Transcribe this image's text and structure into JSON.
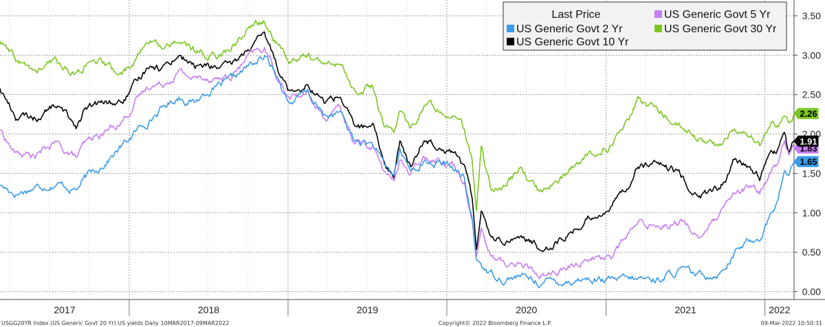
{
  "chart_data": {
    "type": "line",
    "ylim": [
      -0.1,
      3.7
    ],
    "y_ticks": [
      "0.00",
      "0.50",
      "1.00",
      "1.50",
      "2.00",
      "2.50",
      "3.00",
      "3.50"
    ],
    "y_tick_values": [
      0,
      0.5,
      1.0,
      1.5,
      2.0,
      2.5,
      3.0,
      3.5
    ],
    "x_range": [
      "2017-03-10",
      "2022-03-09"
    ],
    "x_ticks": [
      "2017",
      "2018",
      "2019",
      "2020",
      "2021",
      "2022"
    ],
    "grid": true,
    "legend": {
      "title": "Last Price",
      "placement": "top-right",
      "entries": [
        {
          "name": "US Generic Govt 2 Yr",
          "color": "#3a9be8"
        },
        {
          "name": "US Generic Govt 5 Yr",
          "color": "#c77df3"
        },
        {
          "name": "US Generic Govt 10 Yr",
          "color": "#000000"
        },
        {
          "name": "US Generic Govt 30 Yr",
          "color": "#7cc61f"
        }
      ]
    },
    "last_price_tags": [
      {
        "value": "2.26",
        "y": 2.26,
        "color": "#7cc61f",
        "text_color": "#000000"
      },
      {
        "value": "1.91",
        "y": 1.91,
        "color": "#000000",
        "text_color": "#ffffff"
      },
      {
        "value": "1.83",
        "y": 1.83,
        "color": "#c77df3",
        "text_color": "#000000"
      },
      {
        "value": "1.65",
        "y": 1.65,
        "color": "#3a9be8",
        "text_color": "#000000"
      }
    ],
    "series": [
      {
        "name": "US Generic Govt 2 Yr",
        "color": "#3a9be8",
        "points": [
          [
            "2017-03-10",
            1.35
          ],
          [
            "2017-04-15",
            1.25
          ],
          [
            "2017-06-01",
            1.33
          ],
          [
            "2017-07-15",
            1.38
          ],
          [
            "2017-09-01",
            1.3
          ],
          [
            "2017-09-20",
            1.42
          ],
          [
            "2017-11-01",
            1.62
          ],
          [
            "2017-12-15",
            1.84
          ],
          [
            "2018-01-15",
            2.02
          ],
          [
            "2018-03-01",
            2.25
          ],
          [
            "2018-04-25",
            2.48
          ],
          [
            "2018-05-30",
            2.4
          ],
          [
            "2018-07-01",
            2.55
          ],
          [
            "2018-08-20",
            2.65
          ],
          [
            "2018-10-01",
            2.85
          ],
          [
            "2018-11-08",
            2.97
          ],
          [
            "2018-12-10",
            2.72
          ],
          [
            "2019-01-03",
            2.4
          ],
          [
            "2019-02-15",
            2.52
          ],
          [
            "2019-03-25",
            2.22
          ],
          [
            "2019-05-01",
            2.27
          ],
          [
            "2019-06-01",
            1.92
          ],
          [
            "2019-07-15",
            1.86
          ],
          [
            "2019-08-10",
            1.58
          ],
          [
            "2019-09-01",
            1.48
          ],
          [
            "2019-09-15",
            1.78
          ],
          [
            "2019-10-10",
            1.53
          ],
          [
            "2019-11-10",
            1.64
          ],
          [
            "2019-12-15",
            1.62
          ],
          [
            "2020-01-15",
            1.58
          ],
          [
            "2020-02-10",
            1.42
          ],
          [
            "2020-02-28",
            0.9
          ],
          [
            "2020-03-09",
            0.4
          ],
          [
            "2020-03-20",
            0.35
          ],
          [
            "2020-04-10",
            0.22
          ],
          [
            "2020-05-15",
            0.17
          ],
          [
            "2020-06-15",
            0.2
          ],
          [
            "2020-08-01",
            0.12
          ],
          [
            "2020-10-01",
            0.14
          ],
          [
            "2020-11-15",
            0.17
          ],
          [
            "2021-01-15",
            0.13
          ],
          [
            "2021-03-15",
            0.15
          ],
          [
            "2021-05-01",
            0.16
          ],
          [
            "2021-06-20",
            0.27
          ],
          [
            "2021-08-01",
            0.19
          ],
          [
            "2021-09-20",
            0.25
          ],
          [
            "2021-10-20",
            0.48
          ],
          [
            "2021-11-20",
            0.62
          ],
          [
            "2021-12-20",
            0.7
          ],
          [
            "2022-01-15",
            0.98
          ],
          [
            "2022-02-01",
            1.18
          ],
          [
            "2022-02-15",
            1.55
          ],
          [
            "2022-02-25",
            1.45
          ],
          [
            "2022-03-09",
            1.65
          ]
        ]
      },
      {
        "name": "US Generic Govt 5 Yr",
        "color": "#c77df3",
        "points": [
          [
            "2017-03-10",
            2.05
          ],
          [
            "2017-04-15",
            1.75
          ],
          [
            "2017-06-01",
            1.72
          ],
          [
            "2017-07-15",
            1.88
          ],
          [
            "2017-09-01",
            1.7
          ],
          [
            "2017-09-20",
            1.85
          ],
          [
            "2017-11-01",
            2.0
          ],
          [
            "2017-12-15",
            2.17
          ],
          [
            "2018-01-15",
            2.4
          ],
          [
            "2018-02-20",
            2.64
          ],
          [
            "2018-03-15",
            2.63
          ],
          [
            "2018-04-25",
            2.8
          ],
          [
            "2018-05-30",
            2.7
          ],
          [
            "2018-07-01",
            2.73
          ],
          [
            "2018-08-20",
            2.7
          ],
          [
            "2018-10-01",
            2.96
          ],
          [
            "2018-11-08",
            3.08
          ],
          [
            "2018-12-10",
            2.7
          ],
          [
            "2019-01-03",
            2.47
          ],
          [
            "2019-02-15",
            2.5
          ],
          [
            "2019-03-25",
            2.22
          ],
          [
            "2019-05-01",
            2.3
          ],
          [
            "2019-06-01",
            1.9
          ],
          [
            "2019-07-15",
            1.85
          ],
          [
            "2019-08-10",
            1.52
          ],
          [
            "2019-09-01",
            1.38
          ],
          [
            "2019-09-15",
            1.7
          ],
          [
            "2019-10-10",
            1.47
          ],
          [
            "2019-11-10",
            1.73
          ],
          [
            "2019-12-15",
            1.7
          ],
          [
            "2020-01-15",
            1.62
          ],
          [
            "2020-02-10",
            1.42
          ],
          [
            "2020-02-28",
            0.95
          ],
          [
            "2020-03-09",
            0.5
          ],
          [
            "2020-03-20",
            0.8
          ],
          [
            "2020-04-10",
            0.45
          ],
          [
            "2020-05-15",
            0.35
          ],
          [
            "2020-06-15",
            0.36
          ],
          [
            "2020-08-01",
            0.22
          ],
          [
            "2020-10-01",
            0.27
          ],
          [
            "2020-11-15",
            0.42
          ],
          [
            "2021-01-15",
            0.46
          ],
          [
            "2021-02-25",
            0.75
          ],
          [
            "2021-03-15",
            0.85
          ],
          [
            "2021-05-01",
            0.85
          ],
          [
            "2021-06-20",
            0.9
          ],
          [
            "2021-08-01",
            0.7
          ],
          [
            "2021-09-20",
            0.95
          ],
          [
            "2021-10-20",
            1.2
          ],
          [
            "2021-11-20",
            1.3
          ],
          [
            "2021-12-20",
            1.25
          ],
          [
            "2022-01-15",
            1.55
          ],
          [
            "2022-02-01",
            1.65
          ],
          [
            "2022-02-15",
            1.95
          ],
          [
            "2022-02-25",
            1.75
          ],
          [
            "2022-03-09",
            1.83
          ]
        ]
      },
      {
        "name": "US Generic Govt 10 Yr",
        "color": "#000000",
        "points": [
          [
            "2017-03-10",
            2.58
          ],
          [
            "2017-04-15",
            2.22
          ],
          [
            "2017-06-01",
            2.2
          ],
          [
            "2017-07-15",
            2.37
          ],
          [
            "2017-09-01",
            2.12
          ],
          [
            "2017-09-20",
            2.3
          ],
          [
            "2017-11-01",
            2.38
          ],
          [
            "2017-12-15",
            2.4
          ],
          [
            "2018-01-15",
            2.6
          ],
          [
            "2018-02-20",
            2.92
          ],
          [
            "2018-03-15",
            2.84
          ],
          [
            "2018-04-25",
            3.02
          ],
          [
            "2018-05-30",
            2.85
          ],
          [
            "2018-07-01",
            2.86
          ],
          [
            "2018-08-20",
            2.83
          ],
          [
            "2018-10-01",
            3.08
          ],
          [
            "2018-11-08",
            3.23
          ],
          [
            "2018-12-10",
            2.85
          ],
          [
            "2019-01-03",
            2.56
          ],
          [
            "2019-02-15",
            2.66
          ],
          [
            "2019-03-25",
            2.4
          ],
          [
            "2019-05-01",
            2.5
          ],
          [
            "2019-06-01",
            2.1
          ],
          [
            "2019-07-15",
            2.06
          ],
          [
            "2019-08-10",
            1.65
          ],
          [
            "2019-09-01",
            1.47
          ],
          [
            "2019-09-15",
            1.9
          ],
          [
            "2019-10-10",
            1.55
          ],
          [
            "2019-11-10",
            1.94
          ],
          [
            "2019-12-15",
            1.88
          ],
          [
            "2020-01-15",
            1.8
          ],
          [
            "2020-02-10",
            1.58
          ],
          [
            "2020-02-28",
            1.15
          ],
          [
            "2020-03-09",
            0.55
          ],
          [
            "2020-03-20",
            1.1
          ],
          [
            "2020-04-10",
            0.72
          ],
          [
            "2020-05-15",
            0.65
          ],
          [
            "2020-06-15",
            0.72
          ],
          [
            "2020-08-01",
            0.55
          ],
          [
            "2020-10-01",
            0.7
          ],
          [
            "2020-11-15",
            0.9
          ],
          [
            "2021-01-15",
            1.1
          ],
          [
            "2021-02-25",
            1.4
          ],
          [
            "2021-03-15",
            1.62
          ],
          [
            "2021-05-01",
            1.6
          ],
          [
            "2021-06-20",
            1.48
          ],
          [
            "2021-08-01",
            1.2
          ],
          [
            "2021-09-20",
            1.3
          ],
          [
            "2021-10-20",
            1.62
          ],
          [
            "2021-11-20",
            1.6
          ],
          [
            "2021-12-20",
            1.45
          ],
          [
            "2022-01-15",
            1.77
          ],
          [
            "2022-02-01",
            1.8
          ],
          [
            "2022-02-15",
            2.02
          ],
          [
            "2022-02-25",
            1.72
          ],
          [
            "2022-03-09",
            1.91
          ]
        ]
      },
      {
        "name": "US Generic Govt 30 Yr",
        "color": "#7cc61f",
        "points": [
          [
            "2017-03-10",
            3.18
          ],
          [
            "2017-04-15",
            2.92
          ],
          [
            "2017-06-01",
            2.78
          ],
          [
            "2017-07-15",
            2.92
          ],
          [
            "2017-09-01",
            2.75
          ],
          [
            "2017-09-20",
            2.85
          ],
          [
            "2017-11-01",
            2.88
          ],
          [
            "2017-12-15",
            2.75
          ],
          [
            "2018-01-15",
            2.95
          ],
          [
            "2018-02-20",
            3.2
          ],
          [
            "2018-03-15",
            3.1
          ],
          [
            "2018-04-25",
            3.2
          ],
          [
            "2018-05-30",
            3.05
          ],
          [
            "2018-07-01",
            3.0
          ],
          [
            "2018-08-20",
            3.05
          ],
          [
            "2018-10-01",
            3.35
          ],
          [
            "2018-11-08",
            3.42
          ],
          [
            "2018-12-10",
            3.1
          ],
          [
            "2019-01-03",
            2.95
          ],
          [
            "2019-02-15",
            3.02
          ],
          [
            "2019-03-25",
            2.85
          ],
          [
            "2019-05-01",
            2.9
          ],
          [
            "2019-06-01",
            2.55
          ],
          [
            "2019-07-15",
            2.6
          ],
          [
            "2019-08-10",
            2.1
          ],
          [
            "2019-09-01",
            1.98
          ],
          [
            "2019-09-15",
            2.32
          ],
          [
            "2019-10-10",
            2.05
          ],
          [
            "2019-11-10",
            2.38
          ],
          [
            "2019-12-15",
            2.32
          ],
          [
            "2020-01-15",
            2.3
          ],
          [
            "2020-02-10",
            2.05
          ],
          [
            "2020-02-28",
            1.65
          ],
          [
            "2020-03-09",
            1.02
          ],
          [
            "2020-03-20",
            1.8
          ],
          [
            "2020-04-10",
            1.3
          ],
          [
            "2020-05-15",
            1.35
          ],
          [
            "2020-06-15",
            1.55
          ],
          [
            "2020-08-01",
            1.25
          ],
          [
            "2020-10-01",
            1.5
          ],
          [
            "2020-11-15",
            1.7
          ],
          [
            "2021-01-15",
            1.85
          ],
          [
            "2021-02-25",
            2.2
          ],
          [
            "2021-03-15",
            2.42
          ],
          [
            "2021-05-01",
            2.3
          ],
          [
            "2021-06-20",
            2.1
          ],
          [
            "2021-08-01",
            1.9
          ],
          [
            "2021-09-20",
            1.85
          ],
          [
            "2021-10-20",
            2.05
          ],
          [
            "2021-11-20",
            2.0
          ],
          [
            "2021-12-20",
            1.85
          ],
          [
            "2022-01-15",
            2.1
          ],
          [
            "2022-02-01",
            2.15
          ],
          [
            "2022-02-15",
            2.32
          ],
          [
            "2022-02-25",
            2.15
          ],
          [
            "2022-03-09",
            2.26
          ]
        ]
      }
    ]
  },
  "footer": {
    "left": "USGG20YR Index (US Generic Govt 20 Yr) US yields  Daily 10MAR2017-09MAR2022",
    "center": "Copyright© 2022 Bloomberg Finance L.P.",
    "right": "09-Mar-2022 10:50:31"
  }
}
